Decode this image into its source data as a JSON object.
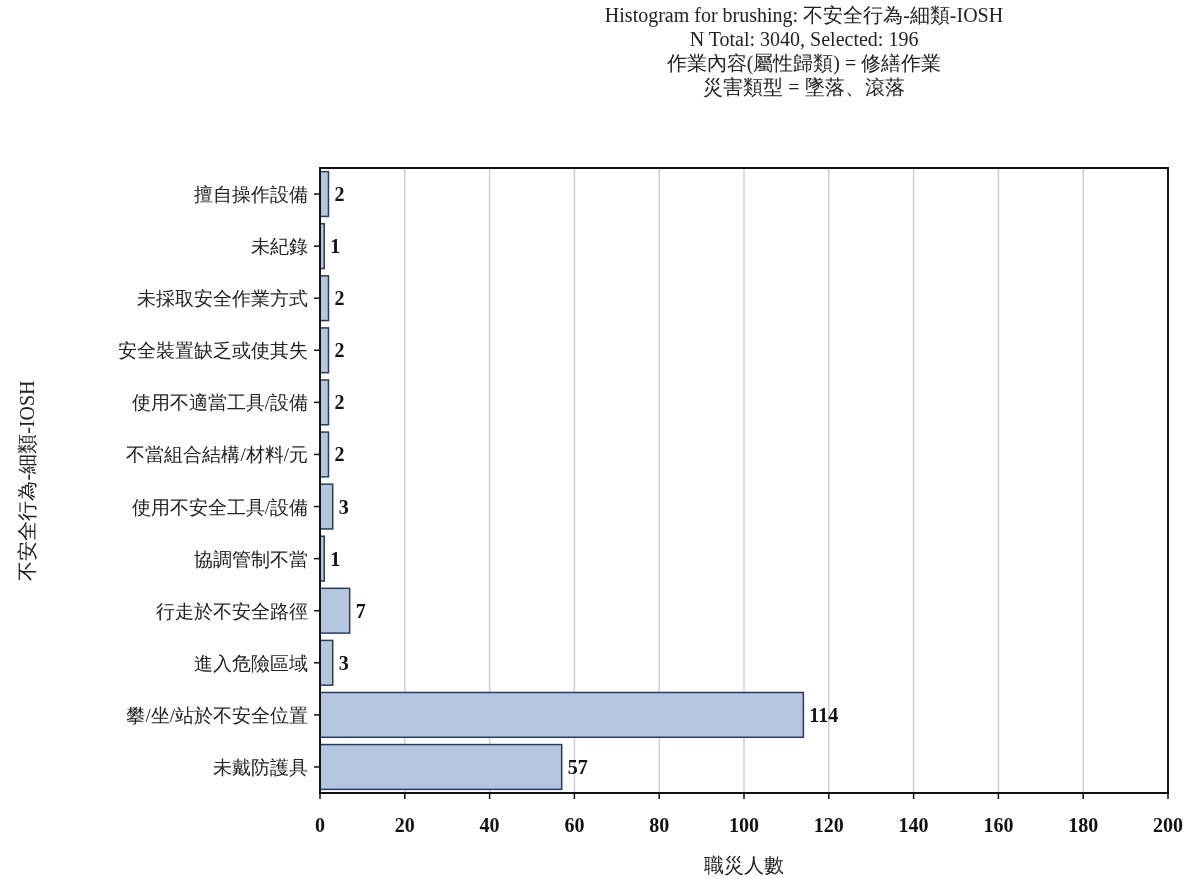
{
  "chart_data": {
    "type": "bar",
    "orientation": "horizontal",
    "title": "Histogram for brushing: 不安全行為-細類-IOSH",
    "subtitle": "N Total: 3040, Selected: 196",
    "annotations": [
      "作業內容(屬性歸類) = 修繕作業",
      "災害類型 = 墜落、滾落"
    ],
    "xlabel": "職災人數",
    "ylabel": "不安全行為-細類-IOSH",
    "categories": [
      "擅自操作設備",
      "未紀錄",
      "未採取安全作業方式",
      "安全裝置缺乏或使其失",
      "使用不適當工具/設備",
      "不當組合結構/材料/元",
      "使用不安全工具/設備",
      "協調管制不當",
      "行走於不安全路徑",
      "進入危險區域",
      "攀/坐/站於不安全位置",
      "未戴防護具"
    ],
    "values": [
      2,
      1,
      2,
      2,
      2,
      2,
      3,
      1,
      7,
      3,
      114,
      57
    ],
    "color": "#b4c6e0",
    "xlim": [
      0,
      200
    ],
    "xticks": [
      0,
      20,
      40,
      60,
      80,
      100,
      120,
      140,
      160,
      180,
      200
    ],
    "grid": "x",
    "data_labels": true
  }
}
